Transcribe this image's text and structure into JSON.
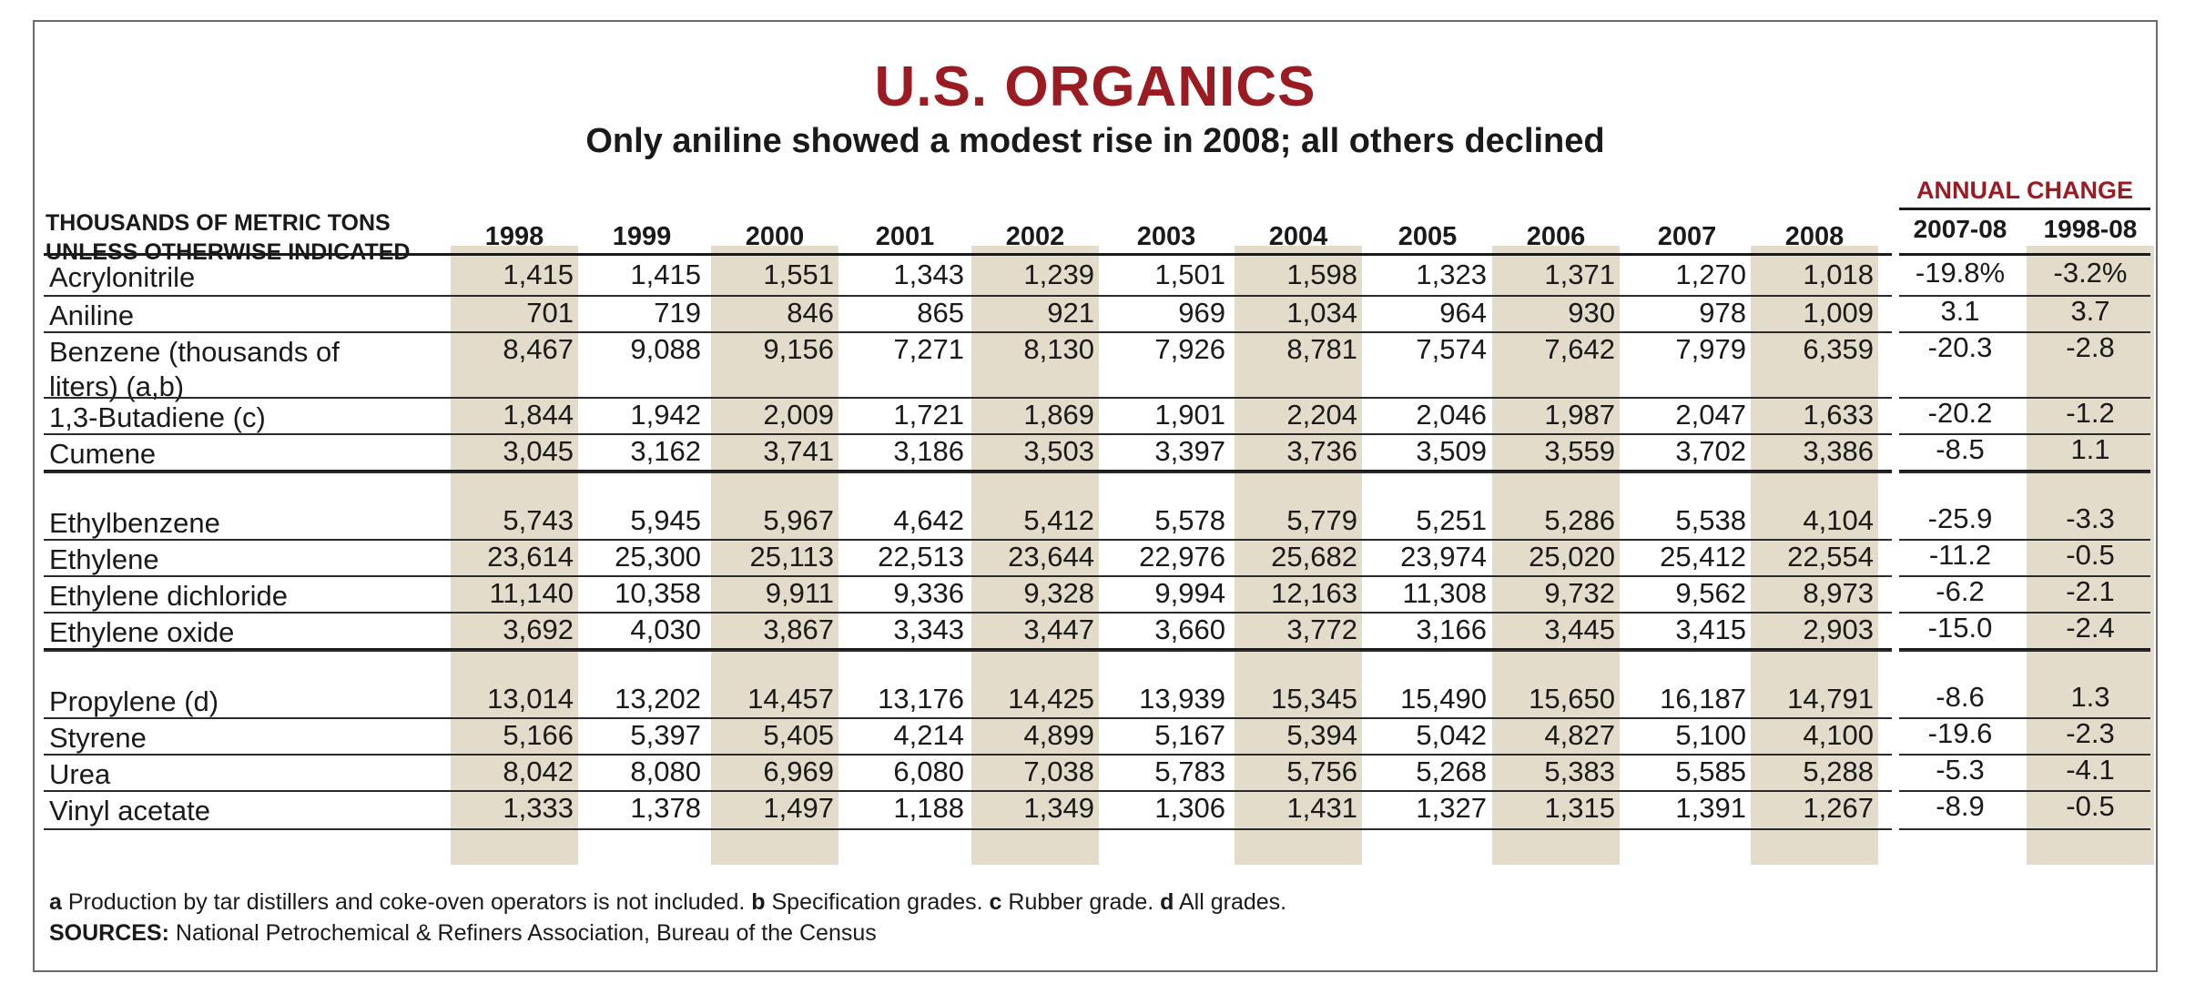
{
  "title": "U.S. ORGANICS",
  "subtitle": "Only aniline showed a modest rise in 2008; all others declined",
  "header_label_line1": "THOUSANDS OF METRIC TONS",
  "header_label_line2": "UNLESS OTHERWISE INDICATED",
  "annual_change_label": "ANNUAL CHANGE",
  "years": [
    "1998",
    "1999",
    "2000",
    "2001",
    "2002",
    "2003",
    "2004",
    "2005",
    "2006",
    "2007",
    "2008"
  ],
  "change_headers": [
    "2007-08",
    "1998-08"
  ],
  "rows": [
    {
      "name": "Acrylonitrile",
      "values": [
        "1,415",
        "1,415",
        "1,551",
        "1,343",
        "1,239",
        "1,501",
        "1,598",
        "1,323",
        "1,371",
        "1,270",
        "1,018"
      ],
      "change": [
        "-19.8%",
        "-3.2%"
      ]
    },
    {
      "name": "Aniline",
      "values": [
        "701",
        "719",
        "846",
        "865",
        "921",
        "969",
        "1,034",
        "964",
        "930",
        "978",
        "1,009"
      ],
      "change": [
        "3.1",
        "3.7"
      ]
    },
    {
      "name": "Benzene (thousands of liters) (a,b)",
      "name_line1": "Benzene (thousands of",
      "name_line2": "liters) (a,b)",
      "values": [
        "8,467",
        "9,088",
        "9,156",
        "7,271",
        "8,130",
        "7,926",
        "8,781",
        "7,574",
        "7,642",
        "7,979",
        "6,359"
      ],
      "change": [
        "-20.3",
        "-2.8"
      ]
    },
    {
      "name": "1,3-Butadiene (c)",
      "values": [
        "1,844",
        "1,942",
        "2,009",
        "1,721",
        "1,869",
        "1,901",
        "2,204",
        "2,046",
        "1,987",
        "2,047",
        "1,633"
      ],
      "change": [
        "-20.2",
        "-1.2"
      ]
    },
    {
      "name": "Cumene",
      "values": [
        "3,045",
        "3,162",
        "3,741",
        "3,186",
        "3,503",
        "3,397",
        "3,736",
        "3,509",
        "3,559",
        "3,702",
        "3,386"
      ],
      "change": [
        "-8.5",
        "1.1"
      ]
    },
    {
      "name": "Ethylbenzene",
      "values": [
        "5,743",
        "5,945",
        "5,967",
        "4,642",
        "5,412",
        "5,578",
        "5,779",
        "5,251",
        "5,286",
        "5,538",
        "4,104"
      ],
      "change": [
        "-25.9",
        "-3.3"
      ]
    },
    {
      "name": "Ethylene",
      "values": [
        "23,614",
        "25,300",
        "25,113",
        "22,513",
        "23,644",
        "22,976",
        "25,682",
        "23,974",
        "25,020",
        "25,412",
        "22,554"
      ],
      "change": [
        "-11.2",
        "-0.5"
      ]
    },
    {
      "name": "Ethylene dichloride",
      "values": [
        "11,140",
        "10,358",
        "9,911",
        "9,336",
        "9,328",
        "9,994",
        "12,163",
        "11,308",
        "9,732",
        "9,562",
        "8,973"
      ],
      "change": [
        "-6.2",
        "-2.1"
      ]
    },
    {
      "name": "Ethylene oxide",
      "values": [
        "3,692",
        "4,030",
        "3,867",
        "3,343",
        "3,447",
        "3,660",
        "3,772",
        "3,166",
        "3,445",
        "3,415",
        "2,903"
      ],
      "change": [
        "-15.0",
        "-2.4"
      ]
    },
    {
      "name": "Propylene (d)",
      "values": [
        "13,014",
        "13,202",
        "14,457",
        "13,176",
        "14,425",
        "13,939",
        "15,345",
        "15,490",
        "15,650",
        "16,187",
        "14,791"
      ],
      "change": [
        "-8.6",
        "1.3"
      ]
    },
    {
      "name": "Styrene",
      "values": [
        "5,166",
        "5,397",
        "5,405",
        "4,214",
        "4,899",
        "5,167",
        "5,394",
        "5,042",
        "4,827",
        "5,100",
        "4,100"
      ],
      "change": [
        "-19.6",
        "-2.3"
      ]
    },
    {
      "name": "Urea",
      "values": [
        "8,042",
        "8,080",
        "6,969",
        "6,080",
        "7,038",
        "5,783",
        "5,756",
        "5,268",
        "5,383",
        "5,585",
        "5,288"
      ],
      "change": [
        "-5.3",
        "-4.1"
      ]
    },
    {
      "name": "Vinyl acetate",
      "values": [
        "1,333",
        "1,378",
        "1,497",
        "1,188",
        "1,349",
        "1,306",
        "1,431",
        "1,327",
        "1,315",
        "1,391",
        "1,267"
      ],
      "change": [
        "-8.9",
        "-0.5"
      ]
    }
  ],
  "footnotes": {
    "a_key": "a",
    "a_text": " Production by tar distillers and coke-oven operators is not included. ",
    "b_key": "b",
    "b_text": " Specification grades. ",
    "c_key": "c",
    "c_text": " Rubber grade. ",
    "d_key": "d",
    "d_text": " All grades.",
    "sources_key": "SOURCES:",
    "sources_text": " National Petrochemical & Refiners Association, Bureau of the Census"
  },
  "colors": {
    "title": "#9b1b23",
    "shade": "#e3dccb",
    "rule": "#2a2a2a"
  }
}
